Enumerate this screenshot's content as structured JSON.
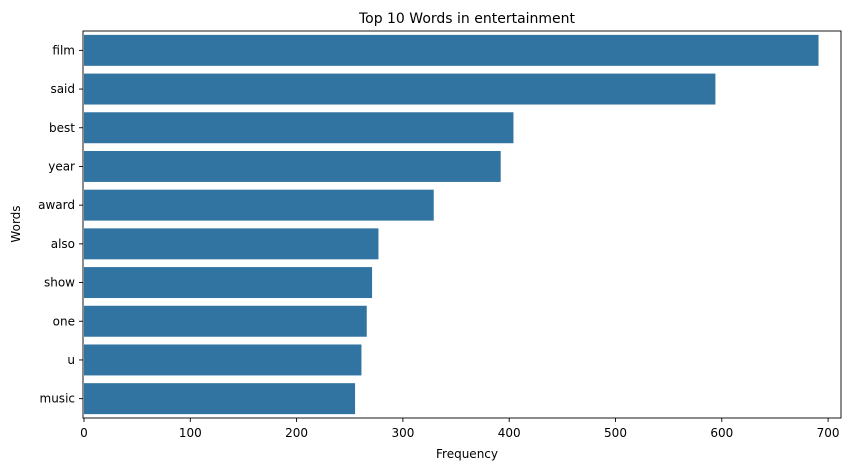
{
  "chart_data": {
    "type": "bar",
    "orientation": "horizontal",
    "title": "Top 10 Words in entertainment",
    "xlabel": "Frequency",
    "ylabel": "Words",
    "categories": [
      "film",
      "said",
      "best",
      "year",
      "award",
      "also",
      "show",
      "one",
      "u",
      "music"
    ],
    "values": [
      691,
      594,
      404,
      392,
      329,
      277,
      271,
      266,
      261,
      255
    ],
    "xlim": [
      0,
      725
    ],
    "xticks": [
      0,
      100,
      200,
      300,
      400,
      500,
      600,
      700
    ],
    "grid": false,
    "legend": false,
    "bar_color": "#3274a1"
  }
}
